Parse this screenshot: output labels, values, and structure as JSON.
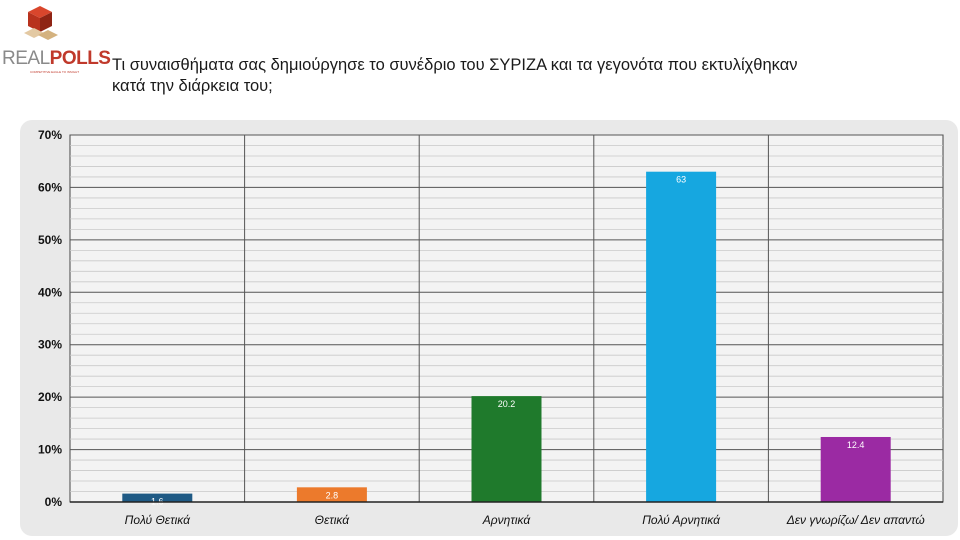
{
  "header": {
    "brand_real": "REAL",
    "brand_polls": "POLLS",
    "tagline": "COMPETITIVE EAGLE TO INSIGHT",
    "title": "Τι συναισθήματα σας δημιούργησε το συνέδριο του ΣΥΡΙΖΑ και τα γεγονότα που εκτυλίχθηκαν κατά την διάρκεια του;"
  },
  "chart_data": {
    "type": "bar",
    "categories": [
      "Πολύ Θετικά",
      "Θετικά",
      "Αρνητικά",
      "Πολύ Αρνητικά",
      "Δεν γνωρίζω/ Δεν απαντώ"
    ],
    "values": [
      1.6,
      2.8,
      20.2,
      63,
      12.4
    ],
    "data_labels": [
      "1.6",
      "2.8",
      "20.2",
      "63",
      "12.4"
    ],
    "colors": [
      "#1f5a85",
      "#ec7a2c",
      "#1f7a2c",
      "#16a7e0",
      "#9b2aa3"
    ],
    "ylim": [
      0,
      70
    ],
    "yticks": [
      0,
      10,
      20,
      30,
      40,
      50,
      60,
      70
    ],
    "ytick_labels": [
      "0%",
      "10%",
      "20%",
      "30%",
      "40%",
      "50%",
      "60%",
      "70%"
    ],
    "minor_step": 2,
    "grid": true,
    "xlabel": "",
    "ylabel": ""
  }
}
